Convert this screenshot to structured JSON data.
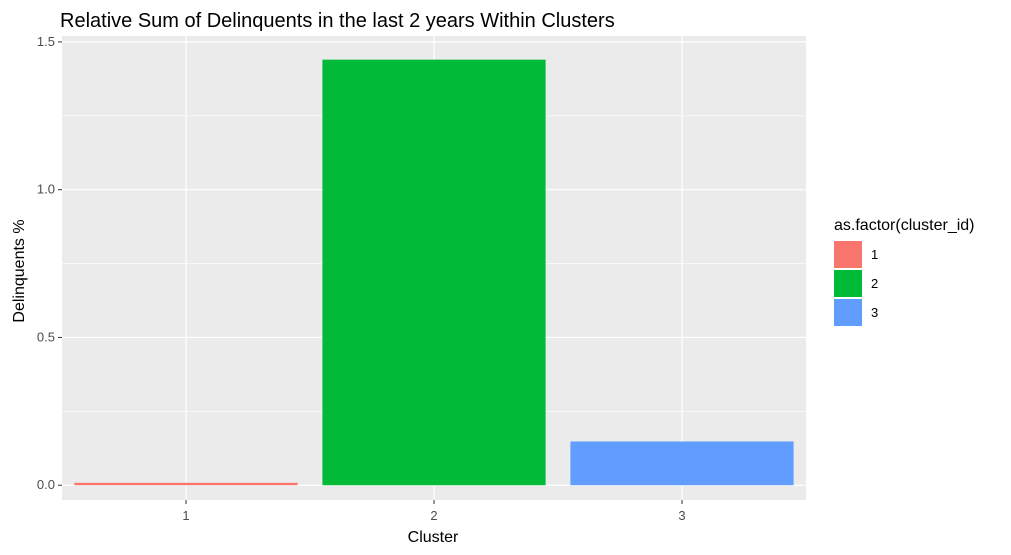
{
  "chart_data": {
    "type": "bar",
    "title": "Relative Sum of Delinquents in the last 2 years Within Clusters",
    "xlabel": "Cluster",
    "ylabel": "Delinquents %",
    "categories": [
      "1",
      "2",
      "3"
    ],
    "values": [
      0.008,
      1.44,
      0.148
    ],
    "colors": [
      "#F8766D",
      "#00BA38",
      "#619CFF"
    ],
    "ylim": [
      -0.05,
      1.52
    ],
    "yticks": [
      0.0,
      0.5,
      1.0,
      1.5
    ],
    "ytick_labels": [
      "0.0",
      "0.5",
      "1.0",
      "1.5"
    ],
    "grid": true,
    "panel_background": "#EBEBEB",
    "legend": {
      "title": "as.factor(cluster_id)",
      "position": "right",
      "entries": [
        "1",
        "2",
        "3"
      ]
    }
  }
}
